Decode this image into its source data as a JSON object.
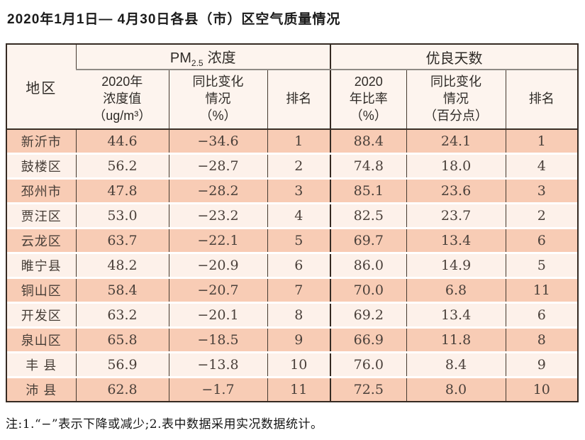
{
  "title": "2020年1月1日— 4月30日各县（市）区空气质量情况",
  "table": {
    "region_header": "地区",
    "group1": {
      "prefix": "PM",
      "sub": "2.5",
      "suffix": "浓度"
    },
    "group2": "优良天数",
    "subheaders": [
      "2020年\n浓度值\n（ug/m³）",
      "同比变化\n情况\n（%）",
      "排名",
      "2020\n年比率\n（%）",
      "同比变化\n情况\n（百分点）",
      "排名"
    ],
    "column_keys": [
      "region",
      "pm25-value",
      "pm25-change",
      "pm25-rank",
      "days-ratio",
      "days-change",
      "days-rank"
    ],
    "rows": [
      {
        "region": "新沂市",
        "values": [
          "44.6",
          "−34.6",
          "1",
          "88.4",
          "24.1",
          "1"
        ]
      },
      {
        "region": "鼓楼区",
        "values": [
          "56.2",
          "−28.7",
          "2",
          "74.8",
          "18.0",
          "4"
        ]
      },
      {
        "region": "邳州市",
        "values": [
          "47.8",
          "−28.2",
          "3",
          "85.1",
          "23.6",
          "3"
        ]
      },
      {
        "region": "贾汪区",
        "values": [
          "53.0",
          "−23.2",
          "4",
          "82.5",
          "23.7",
          "2"
        ]
      },
      {
        "region": "云龙区",
        "values": [
          "63.7",
          "−22.1",
          "5",
          "69.7",
          "13.4",
          "6"
        ]
      },
      {
        "region": "睢宁县",
        "values": [
          "48.2",
          "−20.9",
          "6",
          "86.0",
          "14.9",
          "5"
        ]
      },
      {
        "region": "铜山区",
        "values": [
          "58.4",
          "−20.7",
          "7",
          "70.0",
          "6.8",
          "11"
        ]
      },
      {
        "region": "开发区",
        "values": [
          "63.2",
          "−20.1",
          "8",
          "69.2",
          "13.4",
          "6"
        ]
      },
      {
        "region": "泉山区",
        "values": [
          "65.8",
          "−18.5",
          "9",
          "66.9",
          "11.8",
          "8"
        ]
      },
      {
        "region": "丰 县",
        "values": [
          "56.9",
          "−13.8",
          "10",
          "76.0",
          "8.4",
          "9"
        ]
      },
      {
        "region": "沛 县",
        "values": [
          "62.8",
          "−1.7",
          "11",
          "72.5",
          "8.0",
          "10"
        ]
      }
    ]
  },
  "footnote": "注:1.“−”表示下降或减少;2.表中数据采用实况数据统计。",
  "colors": {
    "row_odd": "#f8ccb5",
    "row_even": "#fdf1ea",
    "header_bg": "#fdf4ee",
    "border_dark": "#352a22",
    "border_gray": "#8f8b86"
  },
  "chart_data": {
    "type": "table",
    "title": "2020年1月1日— 4月30日各县（市）区空气质量情况",
    "column_groups": [
      "地区",
      "PM2.5浓度",
      "优良天数"
    ],
    "columns": [
      "地区",
      "PM2.5浓度 2020年浓度值（ug/m³）",
      "PM2.5浓度 同比变化情况（%）",
      "PM2.5浓度 排名",
      "优良天数 2020年比率（%）",
      "优良天数 同比变化情况（百分点）",
      "优良天数 排名"
    ],
    "rows": [
      [
        "新沂市",
        44.6,
        -34.6,
        1,
        88.4,
        24.1,
        1
      ],
      [
        "鼓楼区",
        56.2,
        -28.7,
        2,
        74.8,
        18.0,
        4
      ],
      [
        "邳州市",
        47.8,
        -28.2,
        3,
        85.1,
        23.6,
        3
      ],
      [
        "贾汪区",
        53.0,
        -23.2,
        4,
        82.5,
        23.7,
        2
      ],
      [
        "云龙区",
        63.7,
        -22.1,
        5,
        69.7,
        13.4,
        6
      ],
      [
        "睢宁县",
        48.2,
        -20.9,
        6,
        86.0,
        14.9,
        5
      ],
      [
        "铜山区",
        58.4,
        -20.7,
        7,
        70.0,
        6.8,
        11
      ],
      [
        "开发区",
        63.2,
        -20.1,
        8,
        69.2,
        13.4,
        6
      ],
      [
        "泉山区",
        65.8,
        -18.5,
        9,
        66.9,
        11.8,
        8
      ],
      [
        "丰县",
        56.9,
        -13.8,
        10,
        76.0,
        8.4,
        9
      ],
      [
        "沛县",
        62.8,
        -1.7,
        11,
        72.5,
        8.0,
        10
      ]
    ],
    "footnote": "注:1.“−”表示下降或减少;2.表中数据采用实况数据统计。"
  }
}
